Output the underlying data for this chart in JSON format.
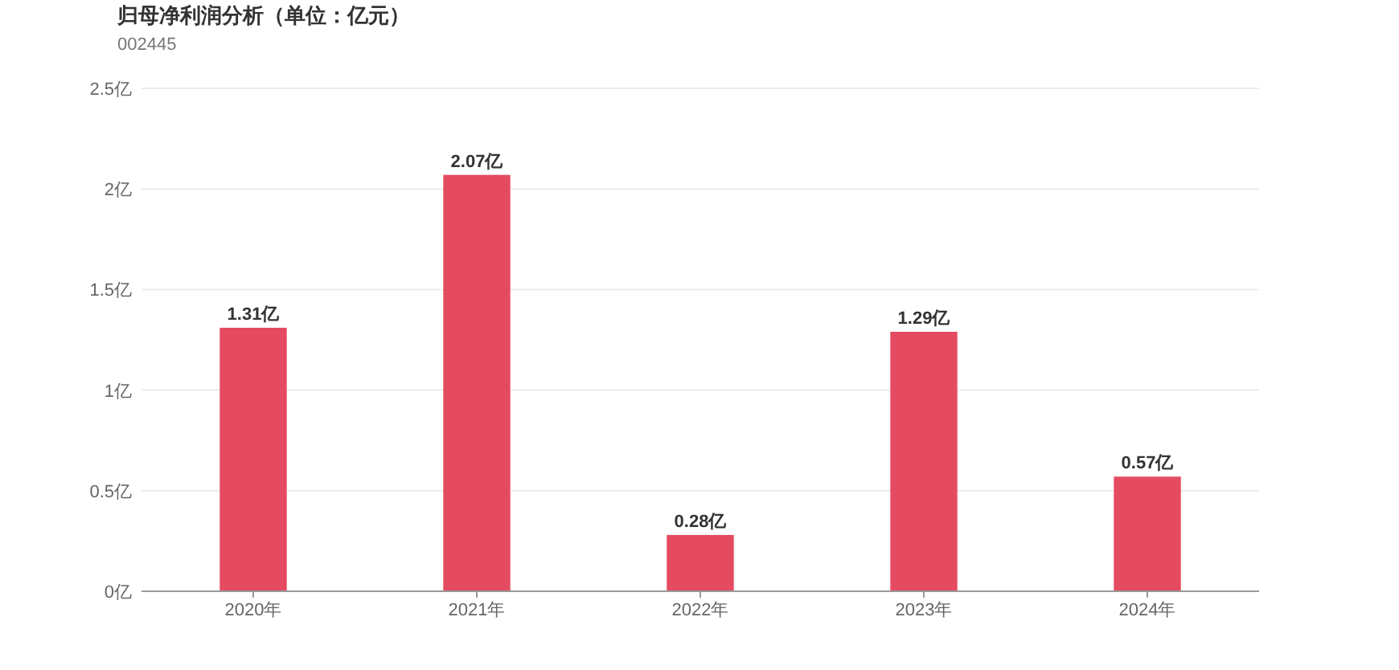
{
  "chart_data": {
    "type": "bar",
    "title": "归母净利润分析（单位：亿元）",
    "subtitle": "002445",
    "categories": [
      "2020年",
      "2021年",
      "2022年",
      "2023年",
      "2024年"
    ],
    "values": [
      1.31,
      2.07,
      0.28,
      1.29,
      0.57
    ],
    "value_labels": [
      "1.31亿",
      "2.07亿",
      "0.28亿",
      "1.29亿",
      "0.57亿"
    ],
    "color": "#e54b60",
    "ylim": [
      0,
      2.5
    ],
    "yticks": [
      {
        "value": 0,
        "label": "0亿"
      },
      {
        "value": 0.5,
        "label": "0.5亿"
      },
      {
        "value": 1,
        "label": "1亿"
      },
      {
        "value": 1.5,
        "label": "1.5亿"
      },
      {
        "value": 2,
        "label": "2亿"
      },
      {
        "value": 2.5,
        "label": "2.5亿"
      }
    ],
    "grid": "y"
  }
}
